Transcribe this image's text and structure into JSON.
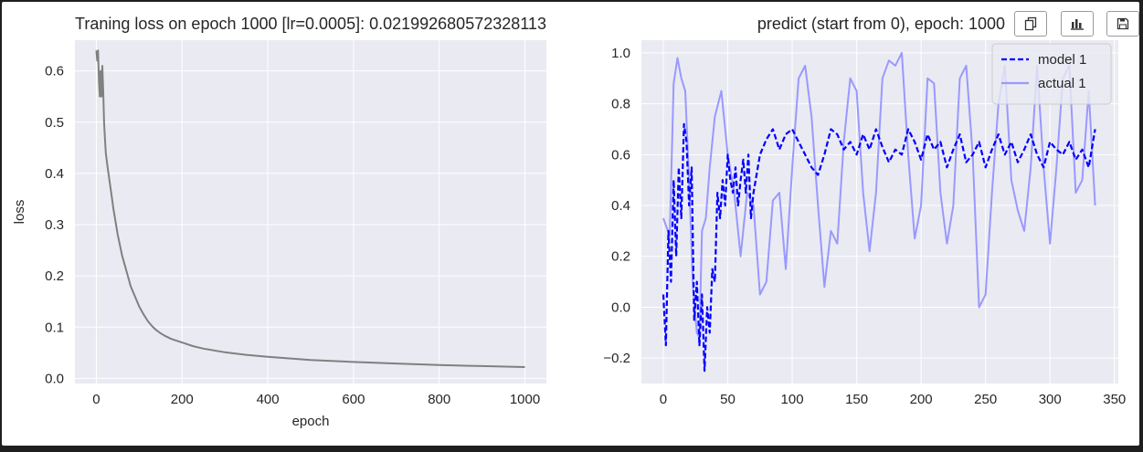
{
  "toolbar": {
    "buttons": [
      {
        "icon": "copy-icon"
      },
      {
        "icon": "bar-chart-icon"
      },
      {
        "icon": "save-icon"
      }
    ]
  },
  "colors": {
    "figure_bg": "#ffffff",
    "axes_bg": "#eaeaf2",
    "grid": "#ffffff",
    "loss_line": "#808080",
    "model_line": "#0000ff",
    "actual_line": "#9999ff",
    "text": "#262626"
  },
  "chart_data": [
    {
      "type": "line",
      "title": "Traning loss on epoch 1000 [lr=0.0005]: 0.021992680572328113",
      "xlabel": "epoch",
      "ylabel": "loss",
      "xlim": [
        -50,
        1050
      ],
      "ylim": [
        -0.01,
        0.66
      ],
      "xticks": [
        0,
        200,
        400,
        600,
        800,
        1000
      ],
      "yticks": [
        0.0,
        0.1,
        0.2,
        0.3,
        0.4,
        0.5,
        0.6
      ],
      "grid": true,
      "series": [
        {
          "color": "#808080",
          "x": [
            0,
            2,
            4,
            6,
            8,
            10,
            12,
            14,
            16,
            18,
            20,
            22,
            25,
            30,
            35,
            40,
            50,
            60,
            70,
            80,
            90,
            100,
            110,
            120,
            130,
            140,
            150,
            160,
            175,
            200,
            225,
            250,
            300,
            350,
            400,
            450,
            500,
            600,
            700,
            800,
            900,
            1000
          ],
          "y": [
            0.64,
            0.62,
            0.64,
            0.58,
            0.55,
            0.6,
            0.55,
            0.61,
            0.56,
            0.5,
            0.47,
            0.44,
            0.42,
            0.39,
            0.36,
            0.33,
            0.28,
            0.24,
            0.21,
            0.18,
            0.16,
            0.14,
            0.125,
            0.112,
            0.102,
            0.094,
            0.088,
            0.083,
            0.077,
            0.07,
            0.063,
            0.058,
            0.051,
            0.046,
            0.042,
            0.039,
            0.036,
            0.032,
            0.029,
            0.026,
            0.024,
            0.022
          ]
        }
      ]
    },
    {
      "type": "line",
      "title": "predict (start from 0), epoch: 1000",
      "xlim": [
        -17,
        353
      ],
      "ylim": [
        -0.3,
        1.05
      ],
      "xticks": [
        0,
        50,
        100,
        150,
        200,
        250,
        300,
        350
      ],
      "yticks": [
        -0.2,
        0.0,
        0.2,
        0.4,
        0.6,
        0.8,
        1.0
      ],
      "grid": true,
      "legend": "top-right",
      "series": [
        {
          "name": "model 1",
          "style": "dashed",
          "color": "#0000ff",
          "x": [
            0,
            2,
            4,
            6,
            8,
            10,
            12,
            14,
            16,
            18,
            20,
            22,
            24,
            26,
            28,
            30,
            32,
            34,
            36,
            38,
            40,
            42,
            44,
            46,
            48,
            50,
            52,
            54,
            56,
            58,
            60,
            62,
            64,
            66,
            68,
            70,
            75,
            80,
            85,
            90,
            95,
            100,
            105,
            110,
            115,
            120,
            125,
            130,
            135,
            140,
            145,
            150,
            155,
            160,
            165,
            170,
            175,
            180,
            185,
            190,
            195,
            200,
            205,
            210,
            215,
            220,
            225,
            230,
            235,
            240,
            245,
            250,
            255,
            260,
            265,
            270,
            275,
            280,
            285,
            290,
            295,
            300,
            305,
            310,
            315,
            320,
            325,
            330,
            335
          ],
          "y": [
            0.05,
            -0.15,
            0.3,
            0.1,
            0.5,
            0.2,
            0.55,
            0.35,
            0.72,
            0.65,
            0.4,
            0.55,
            -0.05,
            0.1,
            -0.15,
            0.05,
            -0.25,
            0.0,
            -0.1,
            0.15,
            0.1,
            0.45,
            0.35,
            0.5,
            0.4,
            0.6,
            0.5,
            0.45,
            0.55,
            0.4,
            0.5,
            0.58,
            0.45,
            0.6,
            0.35,
            0.45,
            0.6,
            0.66,
            0.7,
            0.62,
            0.68,
            0.7,
            0.65,
            0.6,
            0.55,
            0.52,
            0.6,
            0.7,
            0.68,
            0.62,
            0.65,
            0.6,
            0.68,
            0.62,
            0.7,
            0.63,
            0.57,
            0.62,
            0.6,
            0.7,
            0.65,
            0.58,
            0.68,
            0.62,
            0.65,
            0.55,
            0.62,
            0.68,
            0.57,
            0.6,
            0.65,
            0.55,
            0.62,
            0.68,
            0.6,
            0.65,
            0.57,
            0.62,
            0.68,
            0.6,
            0.55,
            0.65,
            0.62,
            0.6,
            0.65,
            0.58,
            0.62,
            0.55,
            0.7
          ]
        },
        {
          "name": "actual 1",
          "style": "solid",
          "color": "#9999ff",
          "x": [
            0,
            5,
            8,
            11,
            14,
            17,
            20,
            23,
            26,
            28,
            30,
            33,
            36,
            40,
            45,
            50,
            55,
            60,
            65,
            70,
            75,
            80,
            85,
            90,
            95,
            100,
            105,
            110,
            115,
            120,
            125,
            130,
            135,
            140,
            145,
            150,
            155,
            160,
            165,
            170,
            175,
            180,
            185,
            190,
            195,
            200,
            205,
            210,
            215,
            220,
            225,
            230,
            235,
            240,
            245,
            250,
            255,
            260,
            265,
            270,
            275,
            280,
            285,
            290,
            295,
            300,
            305,
            310,
            315,
            320,
            325,
            330,
            335
          ],
          "y": [
            0.35,
            0.28,
            0.88,
            0.98,
            0.9,
            0.85,
            0.5,
            0.08,
            -0.1,
            -0.12,
            0.3,
            0.35,
            0.55,
            0.75,
            0.85,
            0.6,
            0.45,
            0.2,
            0.45,
            0.4,
            0.05,
            0.1,
            0.42,
            0.45,
            0.15,
            0.55,
            0.9,
            0.95,
            0.75,
            0.4,
            0.08,
            0.3,
            0.25,
            0.65,
            0.9,
            0.85,
            0.45,
            0.22,
            0.45,
            0.9,
            0.97,
            0.95,
            1.0,
            0.6,
            0.27,
            0.4,
            0.9,
            0.88,
            0.45,
            0.25,
            0.4,
            0.9,
            0.95,
            0.6,
            0.0,
            0.05,
            0.45,
            0.8,
            0.95,
            0.5,
            0.38,
            0.3,
            0.55,
            0.95,
            0.55,
            0.25,
            0.55,
            0.9,
            0.95,
            0.45,
            0.5,
            0.85,
            0.4
          ]
        }
      ]
    }
  ]
}
